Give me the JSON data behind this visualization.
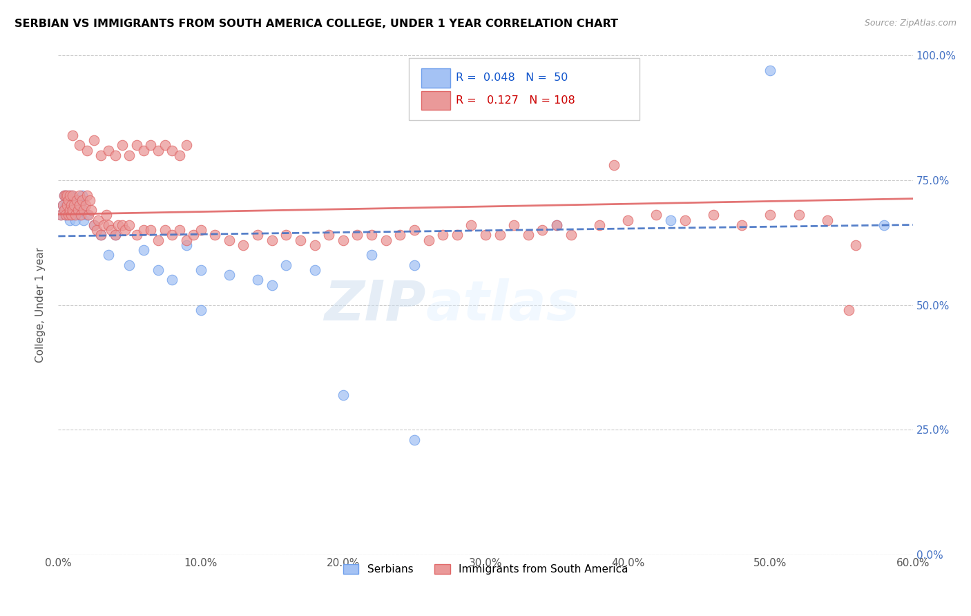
{
  "title": "SERBIAN VS IMMIGRANTS FROM SOUTH AMERICA COLLEGE, UNDER 1 YEAR CORRELATION CHART",
  "source": "Source: ZipAtlas.com",
  "ylabel": "College, Under 1 year",
  "xlim": [
    0.0,
    0.6
  ],
  "ylim": [
    0.0,
    1.0
  ],
  "xtick_vals": [
    0.0,
    0.1,
    0.2,
    0.3,
    0.4,
    0.5,
    0.6
  ],
  "ytick_vals": [
    0.0,
    0.25,
    0.5,
    0.75,
    1.0
  ],
  "serbian_R": 0.048,
  "serbian_N": 50,
  "sa_R": 0.127,
  "sa_N": 108,
  "color_serbian_fill": "#a4c2f4",
  "color_serbian_edge": "#6d9eeb",
  "color_sa_fill": "#ea9999",
  "color_sa_edge": "#e06666",
  "color_serbian_line": "#4472c4",
  "color_sa_line": "#e06666",
  "legend_label_serbian": "Serbians",
  "legend_label_sa": "Immigrants from South America",
  "watermark_zip": "ZIP",
  "watermark_atlas": "atlas",
  "serb_x": [
    0.002,
    0.003,
    0.004,
    0.004,
    0.005,
    0.005,
    0.005,
    0.006,
    0.006,
    0.007,
    0.007,
    0.008,
    0.008,
    0.009,
    0.009,
    0.01,
    0.01,
    0.011,
    0.012,
    0.013,
    0.014,
    0.015,
    0.016,
    0.017,
    0.018,
    0.02,
    0.025,
    0.03,
    0.035,
    0.04,
    0.05,
    0.06,
    0.07,
    0.08,
    0.09,
    0.1,
    0.12,
    0.14,
    0.16,
    0.18,
    0.22,
    0.25,
    0.1,
    0.15,
    0.2,
    0.35,
    0.5,
    0.58,
    0.25,
    0.43
  ],
  "serb_y": [
    0.68,
    0.7,
    0.69,
    0.72,
    0.68,
    0.7,
    0.72,
    0.68,
    0.7,
    0.69,
    0.72,
    0.67,
    0.7,
    0.68,
    0.72,
    0.69,
    0.68,
    0.7,
    0.67,
    0.71,
    0.69,
    0.68,
    0.7,
    0.72,
    0.67,
    0.68,
    0.66,
    0.64,
    0.6,
    0.64,
    0.58,
    0.61,
    0.57,
    0.55,
    0.62,
    0.57,
    0.56,
    0.55,
    0.58,
    0.57,
    0.6,
    0.58,
    0.49,
    0.54,
    0.32,
    0.66,
    0.97,
    0.66,
    0.23,
    0.67
  ],
  "sa_x": [
    0.002,
    0.003,
    0.004,
    0.004,
    0.005,
    0.005,
    0.006,
    0.006,
    0.007,
    0.007,
    0.008,
    0.008,
    0.009,
    0.009,
    0.01,
    0.01,
    0.011,
    0.012,
    0.013,
    0.014,
    0.015,
    0.015,
    0.016,
    0.017,
    0.018,
    0.019,
    0.02,
    0.021,
    0.022,
    0.023,
    0.025,
    0.027,
    0.028,
    0.03,
    0.032,
    0.034,
    0.035,
    0.037,
    0.04,
    0.042,
    0.045,
    0.047,
    0.05,
    0.055,
    0.06,
    0.065,
    0.07,
    0.075,
    0.08,
    0.085,
    0.09,
    0.095,
    0.1,
    0.11,
    0.12,
    0.13,
    0.14,
    0.15,
    0.16,
    0.17,
    0.18,
    0.19,
    0.2,
    0.21,
    0.22,
    0.23,
    0.24,
    0.25,
    0.26,
    0.27,
    0.28,
    0.29,
    0.3,
    0.31,
    0.32,
    0.33,
    0.34,
    0.35,
    0.36,
    0.38,
    0.4,
    0.42,
    0.44,
    0.46,
    0.48,
    0.5,
    0.52,
    0.54,
    0.01,
    0.015,
    0.02,
    0.025,
    0.03,
    0.035,
    0.04,
    0.045,
    0.05,
    0.055,
    0.06,
    0.065,
    0.07,
    0.075,
    0.08,
    0.085,
    0.09,
    0.39,
    0.56,
    0.555
  ],
  "sa_y": [
    0.68,
    0.7,
    0.69,
    0.72,
    0.68,
    0.72,
    0.7,
    0.72,
    0.68,
    0.71,
    0.69,
    0.72,
    0.68,
    0.7,
    0.69,
    0.72,
    0.7,
    0.68,
    0.71,
    0.69,
    0.72,
    0.7,
    0.68,
    0.71,
    0.69,
    0.7,
    0.72,
    0.68,
    0.71,
    0.69,
    0.66,
    0.65,
    0.67,
    0.64,
    0.66,
    0.68,
    0.66,
    0.65,
    0.64,
    0.66,
    0.66,
    0.65,
    0.66,
    0.64,
    0.65,
    0.65,
    0.63,
    0.65,
    0.64,
    0.65,
    0.63,
    0.64,
    0.65,
    0.64,
    0.63,
    0.62,
    0.64,
    0.63,
    0.64,
    0.63,
    0.62,
    0.64,
    0.63,
    0.64,
    0.64,
    0.63,
    0.64,
    0.65,
    0.63,
    0.64,
    0.64,
    0.66,
    0.64,
    0.64,
    0.66,
    0.64,
    0.65,
    0.66,
    0.64,
    0.66,
    0.67,
    0.68,
    0.67,
    0.68,
    0.66,
    0.68,
    0.68,
    0.67,
    0.84,
    0.82,
    0.81,
    0.83,
    0.8,
    0.81,
    0.8,
    0.82,
    0.8,
    0.82,
    0.81,
    0.82,
    0.81,
    0.82,
    0.81,
    0.8,
    0.82,
    0.78,
    0.62,
    0.49
  ]
}
